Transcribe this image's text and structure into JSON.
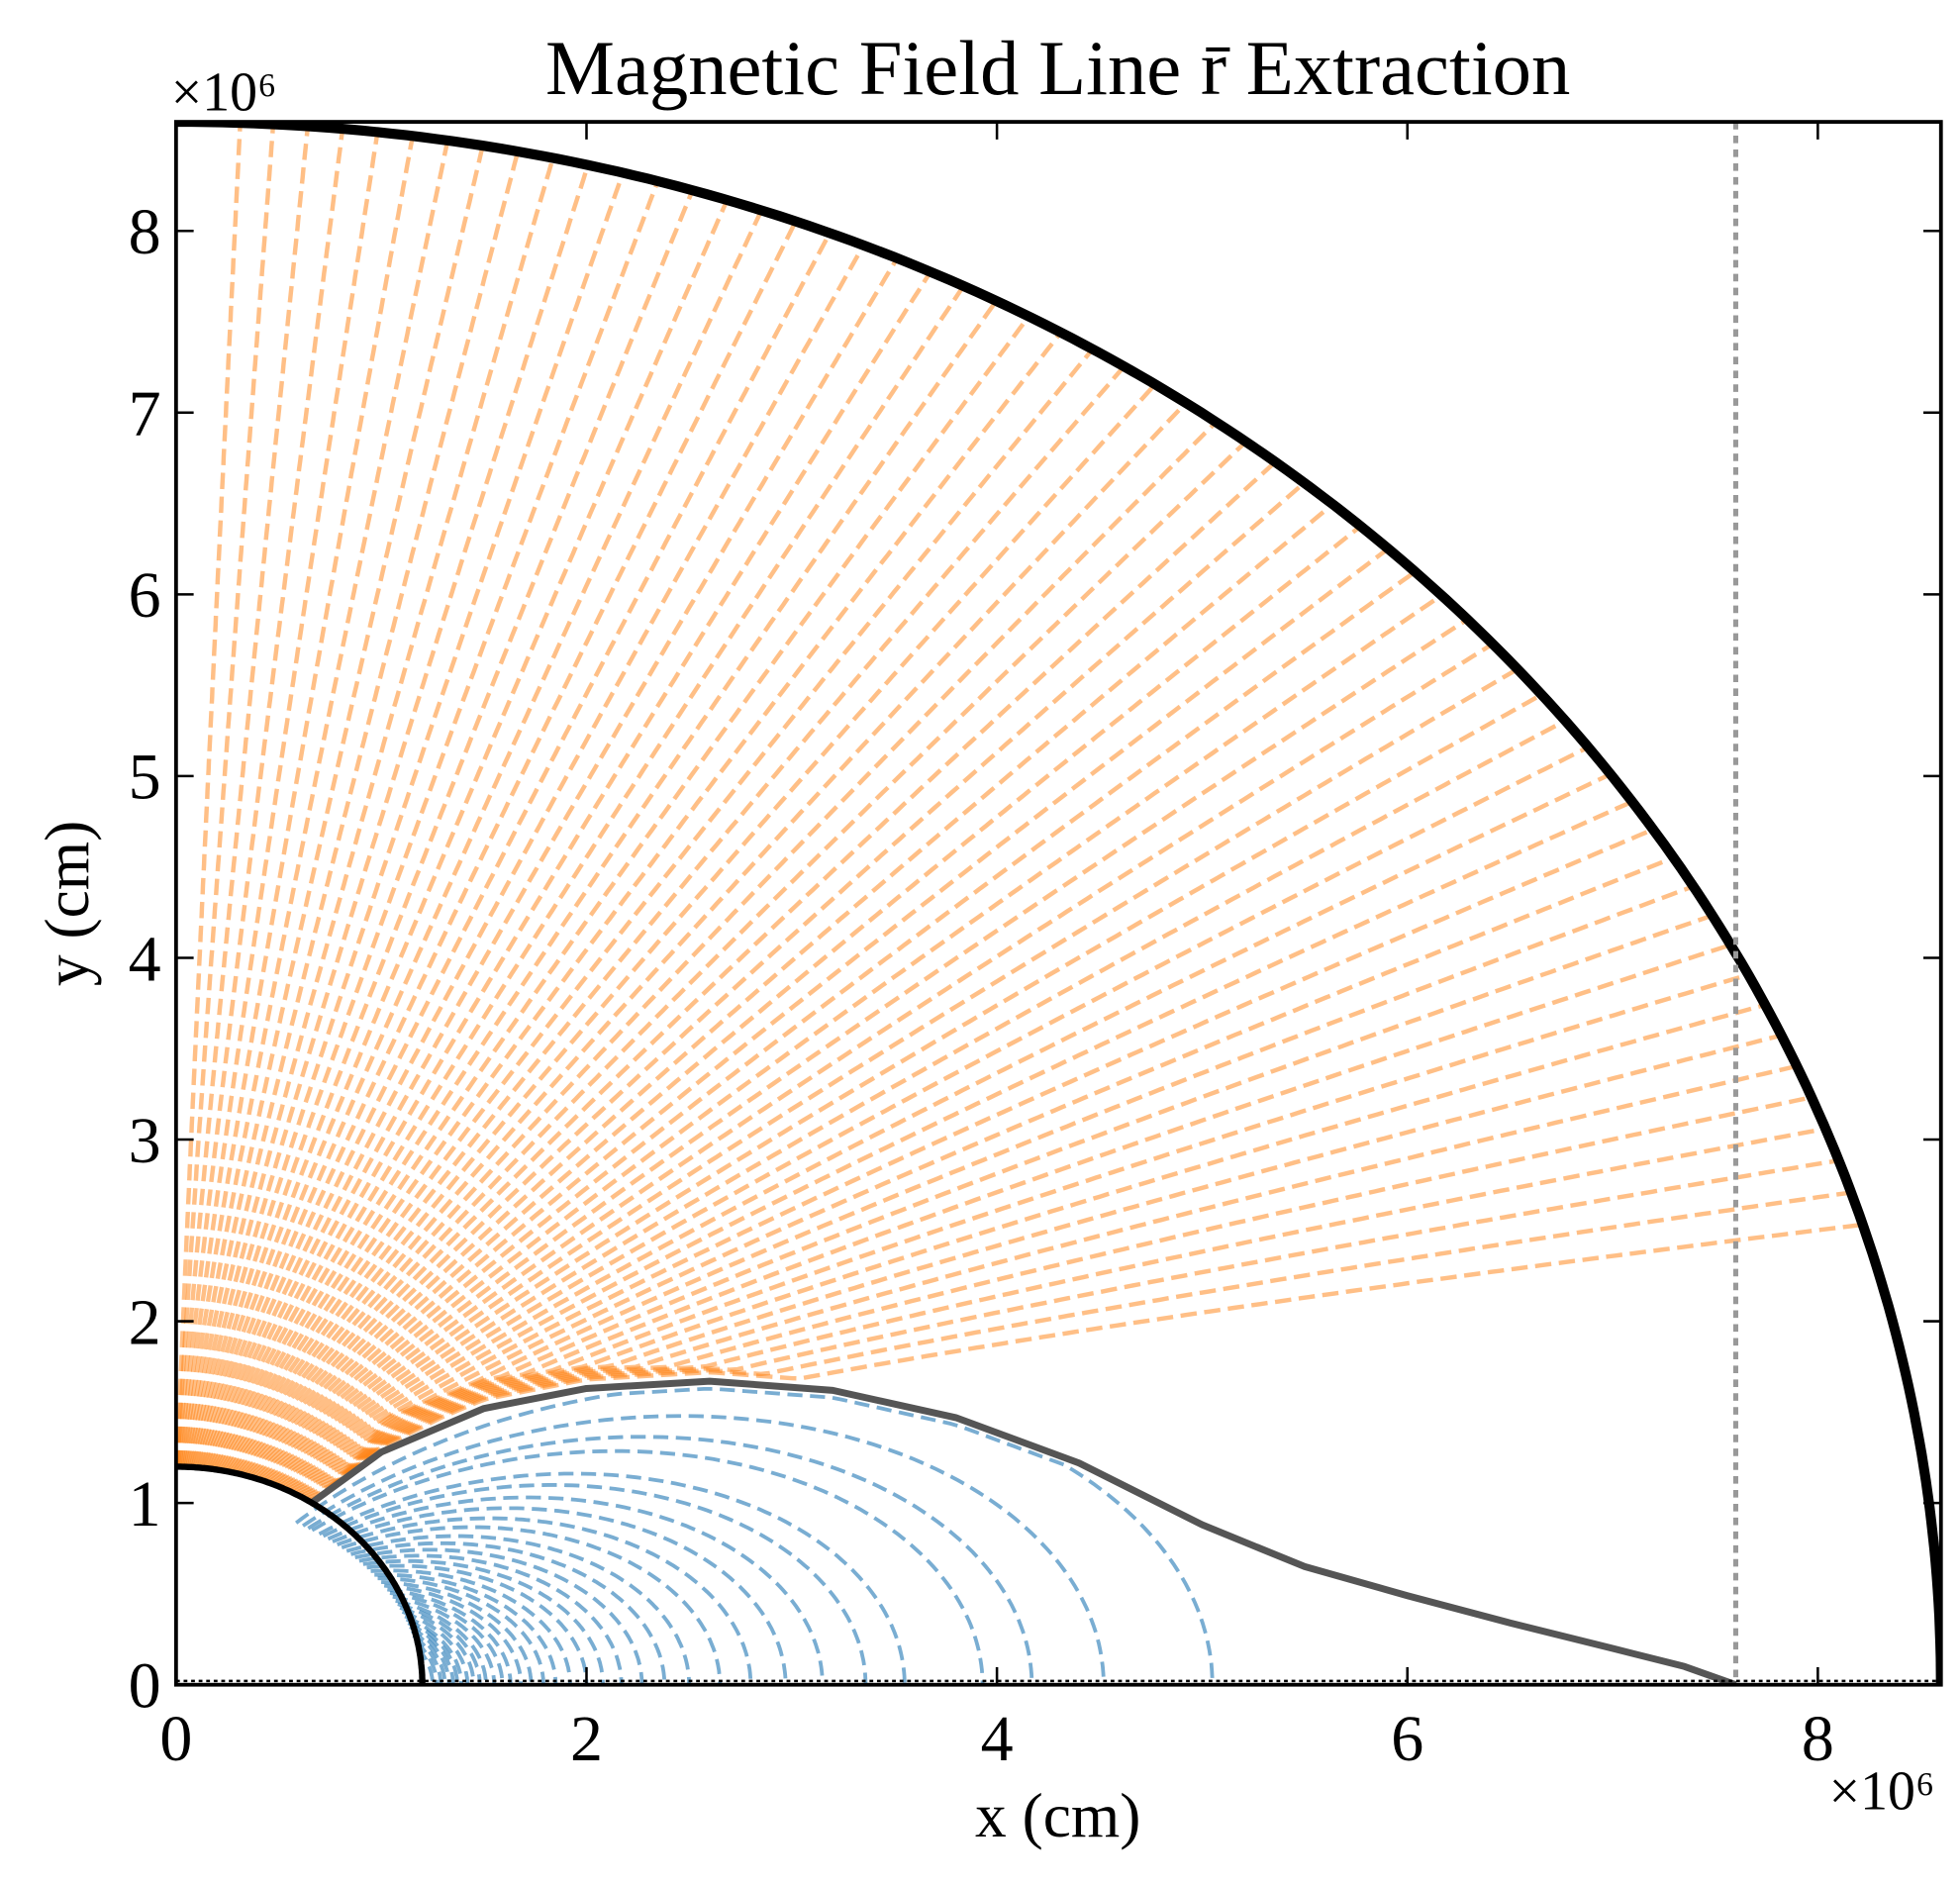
{
  "chart_data": {
    "type": "line",
    "title": "Magnetic Field Line r̄ Extraction",
    "xlabel": "x (cm)",
    "ylabel": "y (cm)",
    "x_offset_text": "×10⁶",
    "y_offset_text": "×10⁶",
    "xlim": [
      0,
      8.6
    ],
    "ylim": [
      0,
      8.6
    ],
    "xticks": [
      "0",
      "2",
      "4",
      "6",
      "8"
    ],
    "xtick_values": [
      0,
      2,
      4,
      6,
      8
    ],
    "yticks": [
      "0",
      "1",
      "2",
      "3",
      "4",
      "5",
      "6",
      "7",
      "8"
    ],
    "ytick_values": [
      0,
      1,
      2,
      3,
      4,
      5,
      6,
      7,
      8
    ],
    "grid": false,
    "inner_boundary_radius": 1.2,
    "outer_boundary_radius": 8.6,
    "vertical_reference_x": 7.6,
    "separatrix": [
      [
        0.66,
        1.0
      ],
      [
        1.0,
        1.28
      ],
      [
        1.5,
        1.52
      ],
      [
        2.0,
        1.63
      ],
      [
        2.6,
        1.67
      ],
      [
        3.2,
        1.62
      ],
      [
        3.8,
        1.47
      ],
      [
        4.4,
        1.22
      ],
      [
        5.0,
        0.88
      ],
      [
        5.5,
        0.65
      ],
      [
        6.0,
        0.49
      ],
      [
        6.5,
        0.34
      ],
      [
        7.0,
        0.2
      ],
      [
        7.35,
        0.1
      ],
      [
        7.6,
        0.0
      ]
    ],
    "closed_field_lines_equator_crossing": [
      5.05,
      4.52,
      4.17,
      3.93,
      3.55,
      3.36,
      3.15,
      2.97,
      2.8,
      2.65,
      2.5,
      2.38,
      2.27,
      2.17,
      2.08,
      2.0,
      1.92,
      1.85,
      1.79,
      1.73,
      1.68,
      1.63,
      1.59,
      1.55,
      1.51,
      1.48,
      1.45,
      1.42,
      1.39,
      1.37,
      1.35,
      1.33,
      1.31,
      1.29,
      1.27,
      1.25
    ],
    "open_field_lines_count": 60,
    "colors": {
      "open_lines": "#ff7f0e",
      "closed_lines": "#1f77b4",
      "separatrix": "#555555",
      "boundary": "#000000",
      "reference_line": "#999999"
    }
  }
}
